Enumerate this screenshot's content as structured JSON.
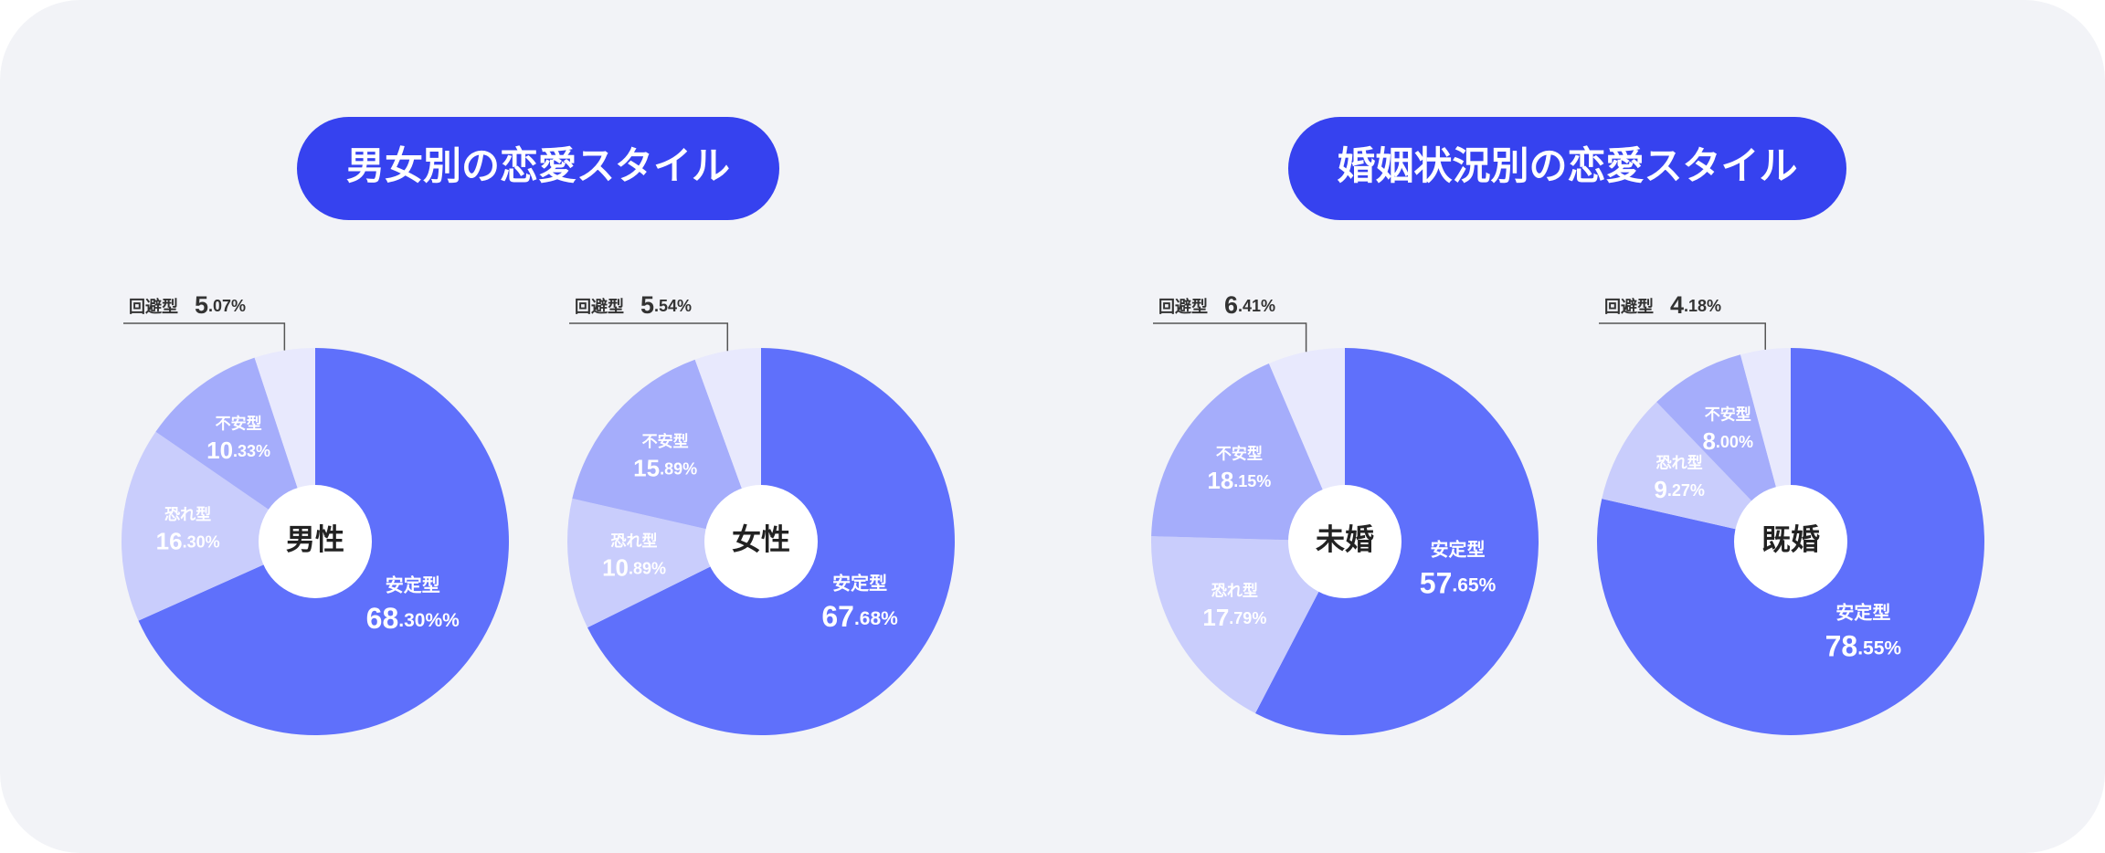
{
  "groups": [
    {
      "title": "男女別の恋愛スタイル"
    },
    {
      "title": "婚姻状況別の恋愛スタイル"
    }
  ],
  "chart_data": [
    {
      "type": "pie",
      "center_label": "男性",
      "categories": [
        "安定型",
        "恐れ型",
        "不安型",
        "回避型"
      ],
      "values": [
        68.3,
        16.3,
        10.33,
        5.07
      ],
      "value_labels": [
        "68.30%%",
        "16.30%",
        "10.33%",
        "5.07%"
      ],
      "colors": [
        "#5f70fb",
        "#c9cdfc",
        "#a5adfb",
        "#e8e9fd"
      ]
    },
    {
      "type": "pie",
      "center_label": "女性",
      "categories": [
        "安定型",
        "恐れ型",
        "不安型",
        "回避型"
      ],
      "values": [
        67.68,
        10.89,
        15.89,
        5.54
      ],
      "value_labels": [
        "67.68%",
        "10.89%",
        "15.89%",
        "5.54%"
      ],
      "colors": [
        "#5f70fb",
        "#c9cdfc",
        "#a5adfb",
        "#e8e9fd"
      ]
    },
    {
      "type": "pie",
      "center_label": "未婚",
      "categories": [
        "安定型",
        "恐れ型",
        "不安型",
        "回避型"
      ],
      "values": [
        57.65,
        17.79,
        18.15,
        6.41
      ],
      "value_labels": [
        "57.65%",
        "17.79%",
        "18.15%",
        "6.41%"
      ],
      "colors": [
        "#5f70fb",
        "#c9cdfc",
        "#a5adfb",
        "#e8e9fd"
      ]
    },
    {
      "type": "pie",
      "center_label": "既婚",
      "categories": [
        "安定型",
        "恐れ型",
        "不安型",
        "回避型"
      ],
      "values": [
        78.55,
        9.27,
        8.0,
        4.18
      ],
      "value_labels": [
        "78.55%",
        "9.27%",
        "8.00%",
        "4.18%"
      ],
      "colors": [
        "#5f70fb",
        "#c9cdfc",
        "#a5adfb",
        "#e8e9fd"
      ]
    }
  ]
}
